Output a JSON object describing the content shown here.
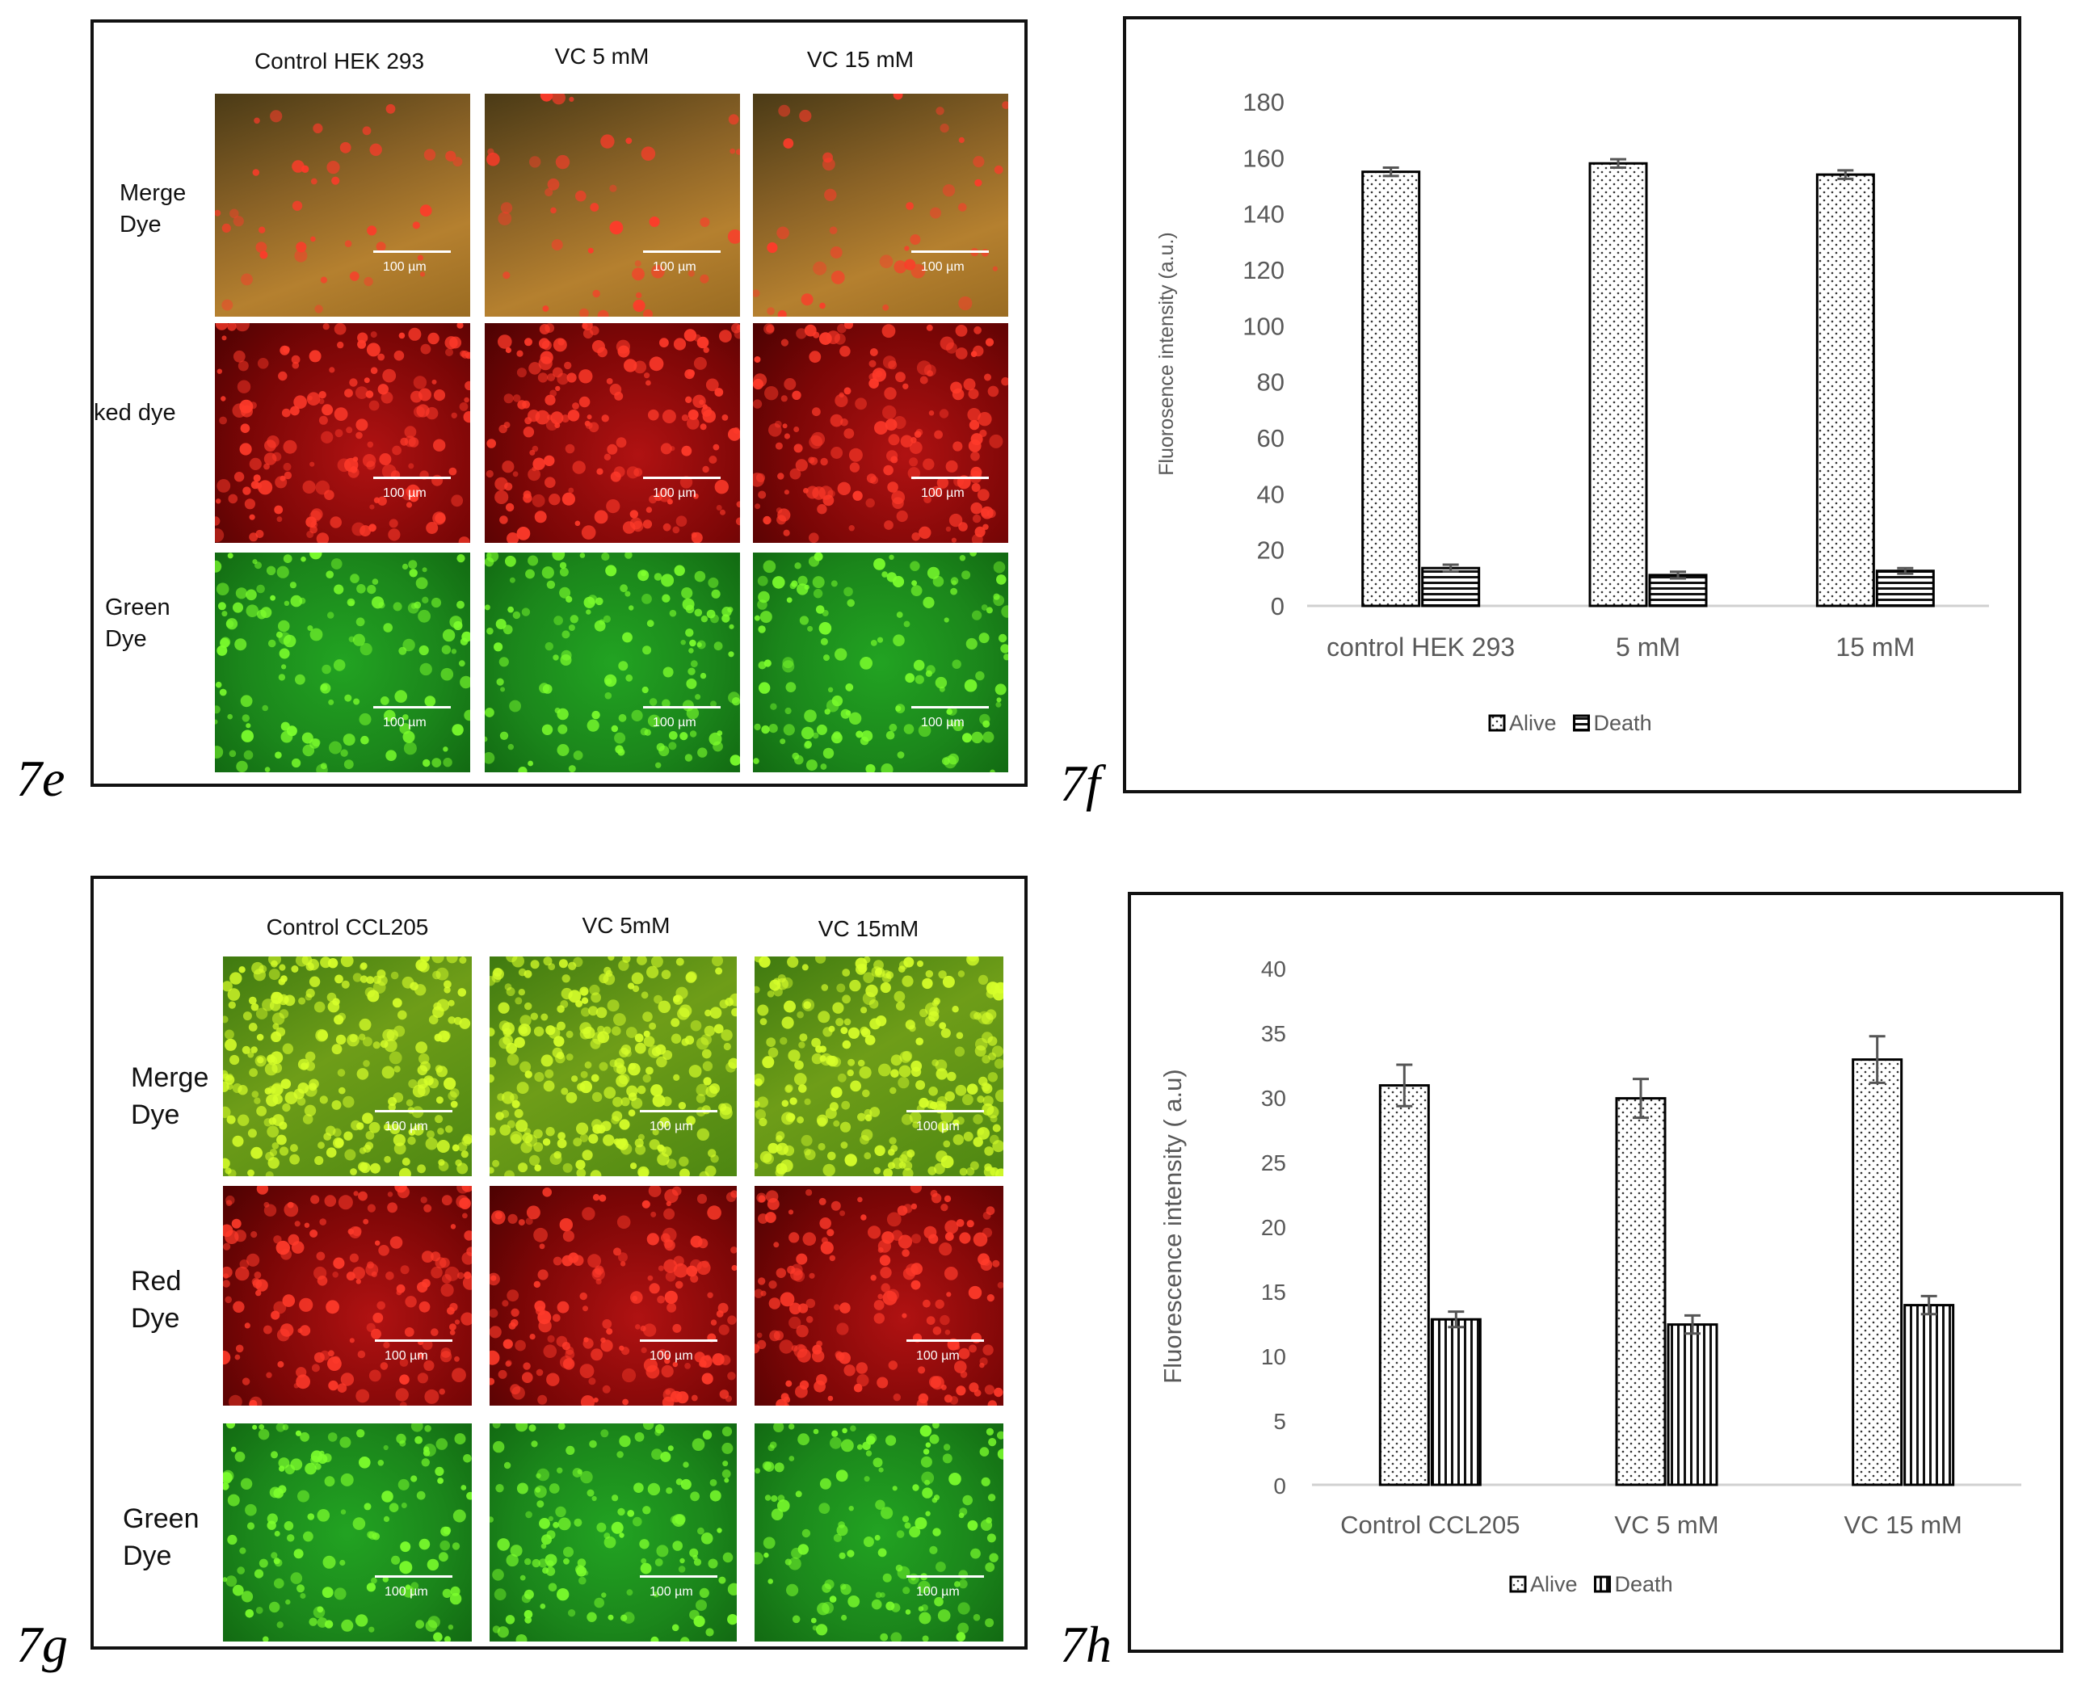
{
  "panels": {
    "e": {
      "letter": "7e",
      "columns": [
        "Control HEK 293",
        "VC 5 mM",
        "VC 15 mM"
      ],
      "rows": [
        "Merge\nDye",
        "ked dye",
        "Green\nDye"
      ],
      "scale_label": "100 µm"
    },
    "f": {
      "letter": "7f",
      "chart_data": {
        "type": "bar",
        "categories": [
          "control HEK 293",
          "5 mM",
          "15 mM"
        ],
        "series": [
          {
            "name": "Alive",
            "values": [
              155,
              158,
              154
            ],
            "errors": [
              1.5,
              1.5,
              1.5
            ],
            "pattern": "dots"
          },
          {
            "name": "Death",
            "values": [
              13.5,
              11,
              12.5
            ],
            "errors": [
              1.2,
              1.2,
              1.0
            ],
            "pattern": "hlines"
          }
        ],
        "ylabel": "Fluorosence intensity (a.u.)",
        "ylim": [
          0,
          180
        ],
        "yticks": [
          0,
          20,
          40,
          60,
          80,
          100,
          120,
          140,
          160,
          180
        ],
        "grid": false,
        "legend": "bottom"
      }
    },
    "g": {
      "letter": "7g",
      "columns": [
        "Control CCL205",
        "VC 5mM",
        "VC 15mM"
      ],
      "rows": [
        "Merge\nDye",
        "Red\nDye",
        "Green\nDye"
      ],
      "scale_label": "100 µm"
    },
    "h": {
      "letter": "7h",
      "chart_data": {
        "type": "bar",
        "categories": [
          "Control CCL205",
          "VC 5 mM",
          "VC 15 mM"
        ],
        "series": [
          {
            "name": "Alive",
            "values": [
              30.9,
              29.9,
              32.9
            ],
            "errors": [
              1.6,
              1.5,
              1.8
            ],
            "pattern": "dots"
          },
          {
            "name": "Death",
            "values": [
              12.8,
              12.4,
              13.9
            ],
            "errors": [
              0.6,
              0.7,
              0.7
            ],
            "pattern": "vlines"
          }
        ],
        "ylabel": "Fluorescence intensity ( a.u)",
        "ylim": [
          0,
          40
        ],
        "yticks": [
          0,
          5,
          10,
          15,
          20,
          25,
          30,
          35,
          40
        ],
        "grid": false,
        "legend": "bottom"
      }
    }
  },
  "colors": {
    "merge_orange": "#a8782c",
    "merge_yellow": "#8fbf1a",
    "red_dye": "#8a0d0d",
    "green_dye": "#1a8f1a",
    "cell_red": "#ff3a2a",
    "cell_green": "#7dff2d",
    "cell_yellow": "#d7ff2a",
    "axis": "#595959",
    "bar_outline": "#000000"
  }
}
